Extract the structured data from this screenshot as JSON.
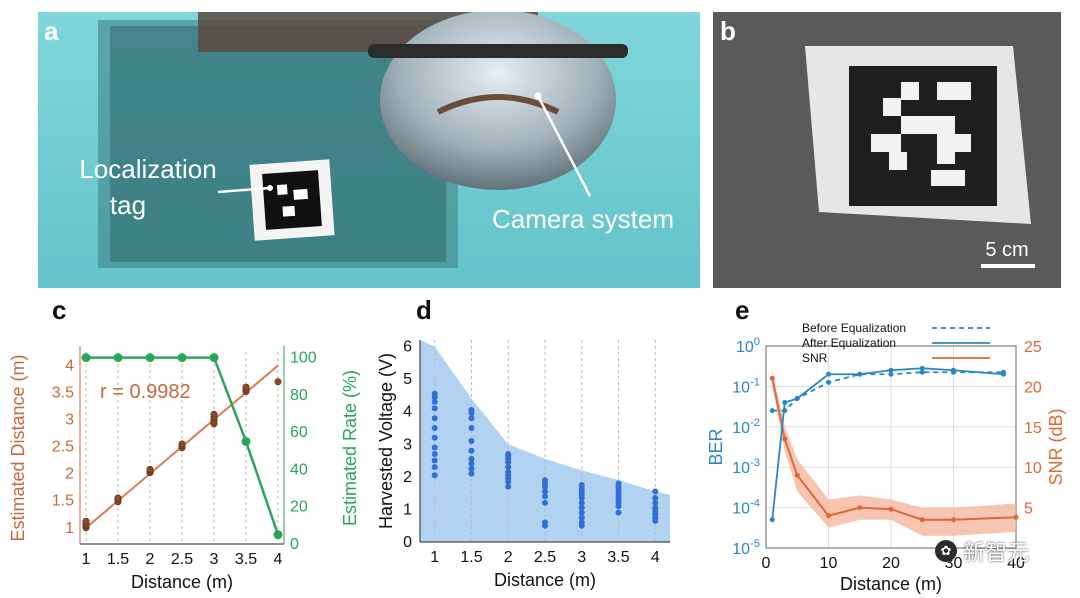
{
  "panels": {
    "a": {
      "letter": "a",
      "tag_label_line1": "Localization",
      "tag_label_line2": "tag",
      "camera_label": "Camera system"
    },
    "b": {
      "letter": "b",
      "scalebar_label": "5 cm"
    },
    "c": {
      "letter": "c"
    },
    "d": {
      "letter": "d"
    },
    "e": {
      "letter": "e"
    }
  },
  "watermark": {
    "text": "新智元"
  },
  "chart_data": [
    {
      "panel": "c",
      "type": "scatter",
      "xlabel": "Distance (m)",
      "ylabel": "Estimated Distance (m)",
      "ylabel_right": "Estimated Rate (%)",
      "annotation": "r = 0.9982",
      "x_ticks": [
        "1",
        "1.5",
        "2",
        "2.5",
        "3",
        "3.5",
        "4"
      ],
      "y_ticks": [
        "1",
        "1.5",
        "2",
        "2.5",
        "3",
        "3.5",
        "4"
      ],
      "y_right_ticks": [
        "0",
        "20",
        "40",
        "60",
        "80",
        "100"
      ],
      "xlim": [
        1,
        4
      ],
      "ylim": [
        0.7,
        4.25
      ],
      "ylim_right": [
        0,
        103
      ],
      "grid": "vertical dashed",
      "colors": {
        "estimated": "#c8683a",
        "rate": "#2aa55a",
        "fit": "#e07a48"
      },
      "fit_line": [
        [
          1,
          1.0
        ],
        [
          4,
          4.0
        ]
      ],
      "series": [
        {
          "values_x": [
            1,
            1,
            1,
            1,
            1.5,
            1.5,
            1.5,
            2,
            2,
            2,
            2.5,
            2.5,
            2.5,
            3,
            3,
            3,
            3,
            3,
            3.5,
            3.5,
            3.5,
            4
          ],
          "values_y": [
            1.0,
            1.04,
            1.07,
            1.12,
            1.48,
            1.52,
            1.55,
            2.02,
            2.05,
            2.08,
            2.48,
            2.52,
            2.55,
            2.92,
            2.97,
            3.02,
            3.05,
            3.1,
            3.52,
            3.56,
            3.6,
            3.7
          ]
        },
        {
          "x": [
            1,
            1.5,
            2,
            2.5,
            3,
            3.5,
            4
          ],
          "values": [
            100,
            100,
            100,
            100,
            100,
            55,
            5
          ]
        }
      ]
    },
    {
      "panel": "d",
      "type": "scatter",
      "xlabel": "Distance (m)",
      "ylabel": "Harvested Voltage (V)",
      "x_ticks": [
        "1",
        "1.5",
        "2",
        "2.5",
        "3",
        "3.5",
        "4"
      ],
      "y_ticks": [
        "0",
        "1",
        "2",
        "3",
        "4",
        "5",
        "6"
      ],
      "xlim": [
        0.8,
        4.2
      ],
      "ylim": [
        0,
        6.2
      ],
      "grid": "vertical dashed",
      "colors": {
        "band": "#a9cdef",
        "points": "#2f6fd6"
      },
      "band": {
        "x": [
          0.8,
          1,
          1.5,
          2,
          2.5,
          3,
          3.5,
          4,
          4.2
        ],
        "upper": [
          6.2,
          6.0,
          4.4,
          3.0,
          2.55,
          2.2,
          1.9,
          1.55,
          1.45
        ]
      },
      "series": [
        {
          "x": [
            1,
            1,
            1,
            1,
            1,
            1,
            1,
            1,
            1,
            1,
            1,
            1
          ],
          "values": [
            2.05,
            2.3,
            2.5,
            2.7,
            2.9,
            3.2,
            3.5,
            3.8,
            4.1,
            4.3,
            4.45,
            4.55
          ]
        },
        {
          "x": [
            1.5,
            1.5,
            1.5,
            1.5,
            1.5,
            1.5,
            1.5,
            1.5,
            1.5,
            1.5
          ],
          "values": [
            2.1,
            2.25,
            2.4,
            2.55,
            2.8,
            3.1,
            3.5,
            3.8,
            3.95,
            4.05
          ]
        },
        {
          "x": [
            2,
            2,
            2,
            2,
            2,
            2,
            2,
            2,
            2,
            2
          ],
          "values": [
            1.7,
            1.85,
            1.95,
            2.05,
            2.15,
            2.3,
            2.45,
            2.55,
            2.65,
            2.7
          ]
        },
        {
          "x": [
            2.5,
            2.5,
            2.5,
            2.5,
            2.5,
            2.5,
            2.5,
            2.5
          ],
          "values": [
            0.5,
            0.6,
            1.2,
            1.4,
            1.55,
            1.7,
            1.8,
            1.9
          ]
        },
        {
          "x": [
            3,
            3,
            3,
            3,
            3,
            3,
            3,
            3,
            3,
            3,
            3
          ],
          "values": [
            0.5,
            0.6,
            0.75,
            0.9,
            1.05,
            1.2,
            1.35,
            1.45,
            1.55,
            1.65,
            1.75
          ]
        },
        {
          "x": [
            3.5,
            3.5,
            3.5,
            3.5,
            3.5,
            3.5,
            3.5,
            3.5,
            3.5
          ],
          "values": [
            0.9,
            1.1,
            1.2,
            1.3,
            1.4,
            1.5,
            1.6,
            1.7,
            1.8
          ]
        },
        {
          "x": [
            4,
            4,
            4,
            4,
            4,
            4,
            4,
            4
          ],
          "values": [
            0.65,
            0.75,
            0.85,
            0.95,
            1.05,
            1.2,
            1.35,
            1.55
          ]
        }
      ]
    },
    {
      "panel": "e",
      "type": "line",
      "xlabel": "Distance (m)",
      "ylabel": "BER",
      "ylabel_right": "SNR (dB)",
      "x_ticks": [
        "0",
        "10",
        "20",
        "30",
        "40"
      ],
      "y_ticks": [
        "10-5",
        "10-4",
        "10-3",
        "10-2",
        "10-1",
        "100"
      ],
      "y_right_ticks": [
        "5",
        "10",
        "15",
        "20",
        "25"
      ],
      "xlim": [
        0,
        40
      ],
      "ylim_log10": [
        -5,
        0
      ],
      "ylim_right": [
        0,
        25
      ],
      "grid": "on",
      "legend": "top",
      "colors": {
        "ber": "#2b86c5",
        "snr": "#e0673a",
        "snr_band": "#f3b39a"
      },
      "series": [
        {
          "name": "Before Equalization",
          "style": "dashed",
          "x": [
            1,
            3,
            5,
            10,
            15,
            20,
            25,
            30,
            38
          ],
          "values_log10": [
            -1.6,
            -1.6,
            -1.3,
            -0.9,
            -0.7,
            -0.7,
            -0.65,
            -0.65,
            -0.65
          ]
        },
        {
          "name": "After Equalization",
          "style": "solid",
          "x": [
            1,
            3,
            5,
            10,
            15,
            20,
            25,
            30,
            38
          ],
          "values_log10": [
            -4.3,
            -1.4,
            -1.3,
            -0.7,
            -0.7,
            -0.6,
            -0.55,
            -0.6,
            -0.7
          ]
        },
        {
          "name": "SNR",
          "style": "solid",
          "x": [
            1,
            3,
            5,
            10,
            15,
            20,
            25,
            30,
            40
          ],
          "values": [
            21,
            13.5,
            9,
            4,
            5,
            4.8,
            3.5,
            3.5,
            3.8
          ],
          "band_upper": [
            22,
            15,
            11,
            6,
            6.5,
            6,
            5,
            5,
            5.5
          ],
          "band_lower": [
            20,
            12,
            7,
            2.5,
            3.5,
            3.5,
            1.5,
            1.5,
            2
          ]
        }
      ]
    }
  ]
}
